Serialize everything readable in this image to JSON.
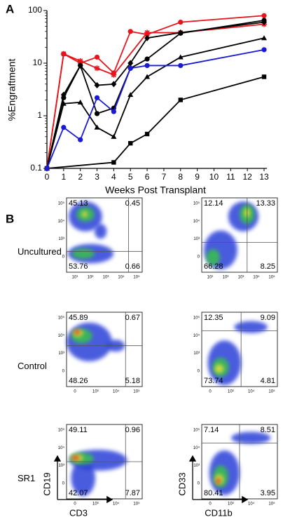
{
  "chart_data": [
    {
      "type": "line",
      "panel_label": "A",
      "y_label": "%Engraftment",
      "x_label": "Weeks Post Transplant",
      "xlim": [
        0,
        13
      ],
      "xticks": [
        0,
        1,
        2,
        3,
        4,
        5,
        6,
        7,
        8,
        9,
        10,
        11,
        12,
        13
      ],
      "ylim": [
        0.1,
        100
      ],
      "yticks": [
        0.1,
        1,
        10,
        100
      ],
      "log_y": true,
      "series": [
        {
          "color": "#e8141b",
          "marker": "circle",
          "x": [
            0,
            1,
            2,
            3,
            4,
            5,
            6,
            8,
            13
          ],
          "values": [
            0.1,
            15,
            10,
            13,
            6.5,
            40,
            35,
            60,
            80
          ]
        },
        {
          "color": "#e8141b",
          "marker": "star",
          "x": [
            0,
            1,
            2,
            3,
            4,
            6,
            8,
            13
          ],
          "values": [
            0.1,
            15,
            11,
            8,
            6,
            38,
            38,
            55
          ]
        },
        {
          "color": "#000000",
          "marker": "diamond",
          "x": [
            0,
            1,
            2,
            3,
            4,
            5,
            6,
            8,
            13
          ],
          "values": [
            0.1,
            2.5,
            9,
            3.8,
            4,
            10,
            30,
            38,
            60
          ]
        },
        {
          "color": "#000000",
          "marker": "circle",
          "x": [
            0,
            1,
            2,
            3,
            4,
            5,
            6,
            8,
            13
          ],
          "values": [
            0.1,
            2.2,
            9,
            1.1,
            1.4,
            8,
            12,
            37,
            65
          ]
        },
        {
          "color": "#000000",
          "marker": "triangle",
          "x": [
            0,
            1,
            2,
            3,
            4,
            5,
            6,
            8,
            13
          ],
          "values": [
            0.1,
            1.7,
            1.8,
            0.6,
            0.4,
            2.5,
            5.5,
            13,
            30
          ]
        },
        {
          "color": "#000000",
          "marker": "square",
          "x": [
            0,
            4,
            5,
            6,
            8,
            13
          ],
          "values": [
            0.1,
            0.13,
            0.3,
            0.45,
            2,
            5.5
          ]
        },
        {
          "color": "#1a1ad6",
          "marker": "circle",
          "x": [
            0,
            1,
            2,
            3,
            4,
            5,
            6,
            8,
            13
          ],
          "values": [
            0.1,
            0.6,
            0.35,
            2.2,
            1.2,
            8,
            9,
            9,
            18
          ]
        }
      ]
    },
    {
      "type": "flow",
      "panel_label": "B",
      "x_labels": [
        "CD3",
        "CD11b"
      ],
      "y_labels": [
        "CD19",
        "CD33"
      ],
      "rows": [
        {
          "label": "Uncultured",
          "plots": [
            {
              "quadrants": [
                45.13,
                0.45,
                53.76,
                0.66
              ],
              "xticklabels": [
                "10¹",
                "10²",
                "10³",
                "10⁴",
                "10⁵"
              ],
              "yticklabels": [
                "10⁵",
                "10⁴",
                "10³",
                "0"
              ]
            },
            {
              "quadrants": [
                12.14,
                13.33,
                66.28,
                8.25
              ],
              "xticklabels": [
                "10¹",
                "10²",
                "10³",
                "10⁴",
                "10⁵"
              ],
              "yticklabels": [
                "10⁵",
                "10⁴",
                "10³",
                "0"
              ]
            }
          ]
        },
        {
          "label": "Control",
          "plots": [
            {
              "quadrants": [
                45.89,
                0.67,
                48.26,
                5.18
              ],
              "xticklabels": [
                "0",
                "10³",
                "10⁴",
                "10⁵"
              ],
              "yticklabels": [
                "10⁵",
                "10⁴",
                "10³",
                "0"
              ]
            },
            {
              "quadrants": [
                12.35,
                9.09,
                73.74,
                4.81
              ],
              "xticklabels": [
                "0",
                "10³",
                "10⁴",
                "10⁵"
              ],
              "yticklabels": [
                "10⁵",
                "10⁴",
                "10³",
                "0"
              ]
            }
          ]
        },
        {
          "label": "SR1",
          "plots": [
            {
              "quadrants": [
                49.11,
                0.96,
                42.07,
                7.87
              ],
              "xticklabels": [
                "0",
                "10³",
                "10⁴",
                "10⁵"
              ],
              "yticklabels": [
                "10⁵",
                "10⁴",
                "10³",
                "0"
              ]
            },
            {
              "quadrants": [
                7.14,
                8.51,
                80.41,
                3.95
              ],
              "xticklabels": [
                "0",
                "10³",
                "10⁴",
                "10⁵"
              ],
              "yticklabels": [
                "10⁵",
                "10⁴",
                "10³",
                "0"
              ]
            }
          ]
        }
      ]
    }
  ]
}
